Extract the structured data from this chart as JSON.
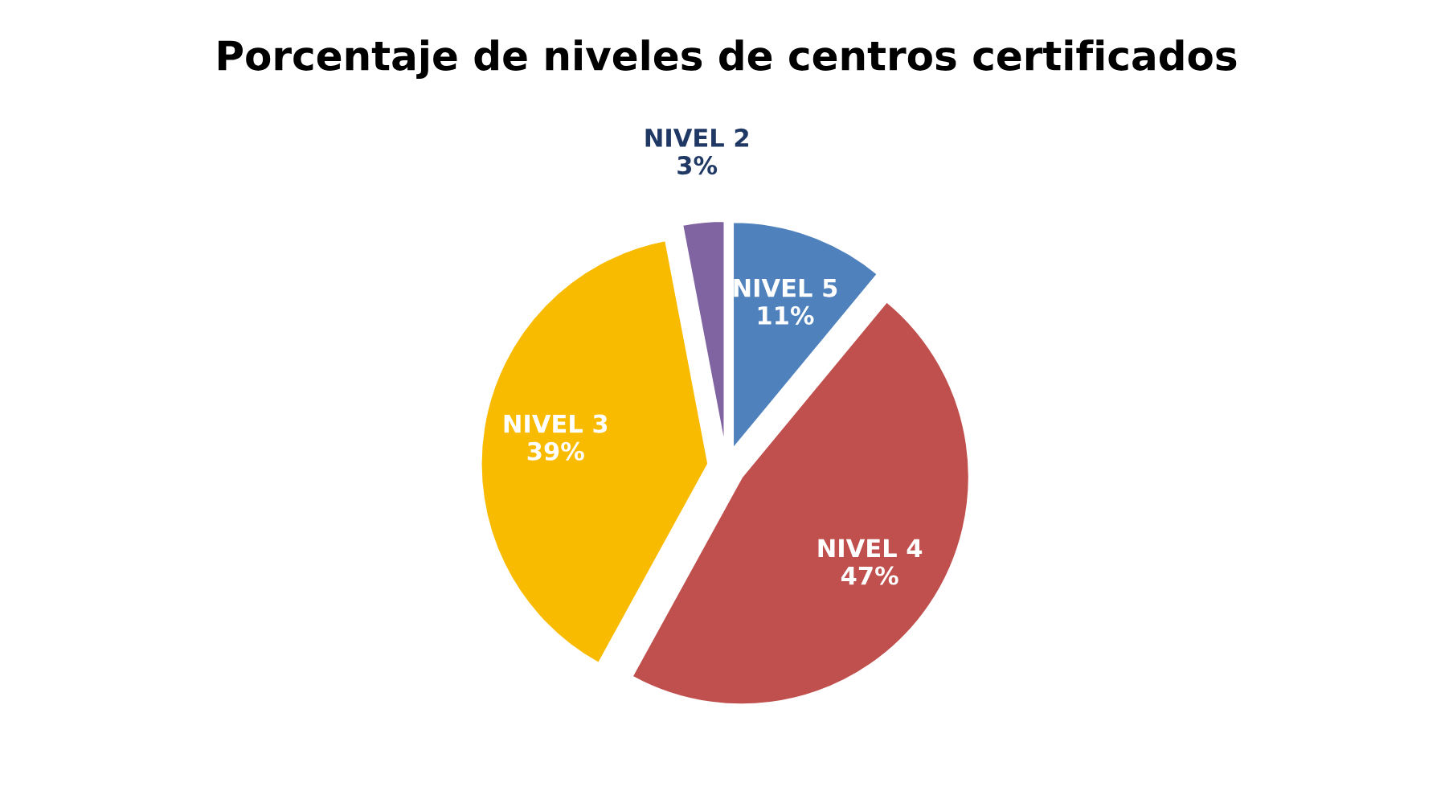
{
  "chart_data": {
    "type": "pie",
    "title": "Porcentaje de niveles de centros certificados",
    "categories": [
      "NIVEL 5",
      "NIVEL 4",
      "NIVEL 3",
      "NIVEL 2"
    ],
    "values": [
      11,
      47,
      39,
      3
    ],
    "value_labels": [
      "11%",
      "47%",
      "39%",
      "3%"
    ],
    "colors": [
      "#4f81bd",
      "#c0504d",
      "#f9bb00",
      "#8064a2"
    ],
    "data_labels": true,
    "legend": false
  }
}
